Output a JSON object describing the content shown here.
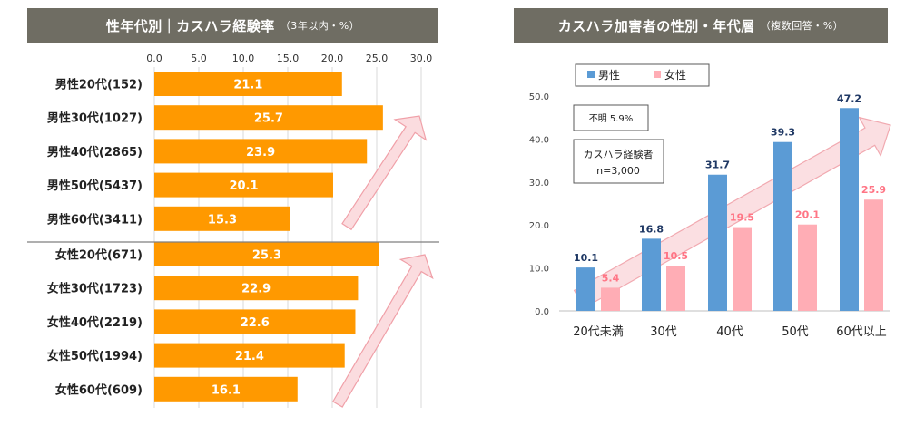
{
  "left": {
    "title": "性年代別｜カスハラ経験率",
    "subtitle": "（3年以内・%）"
  },
  "right": {
    "title": "カスハラ加害者の性別・年代層",
    "subtitle": "（複数回答・%）",
    "note_unknown": "不明 5.9%",
    "note_box_line1": "カスハラ経験者",
    "note_box_line2": "n=3,000"
  },
  "colors": {
    "title_bg": "#6f6d63",
    "orange_bar": "#ff9900",
    "male_bar": "#5b9bd5",
    "female_bar": "#ffadb5",
    "male_label": "#1f3864",
    "female_label": "#ff7585",
    "arrow_fill": "#fbdcdf",
    "arrow_stroke": "#f0a0a8"
  },
  "chart_data": [
    {
      "type": "bar",
      "orientation": "horizontal",
      "categories": [
        "男性20代(152)",
        "男性30代(1027)",
        "男性40代(2865)",
        "男性50代(5437)",
        "男性60代(3411)",
        "女性20代(671)",
        "女性30代(1723)",
        "女性40代(2219)",
        "女性50代(1994)",
        "女性60代(609)"
      ],
      "values": [
        21.1,
        25.7,
        23.9,
        20.1,
        15.3,
        25.3,
        22.9,
        22.6,
        21.4,
        16.1
      ],
      "value_labels": [
        "21.1",
        "25.7",
        "23.9",
        "20.1",
        "15.3",
        "25.3",
        "22.9",
        "22.6",
        "21.4",
        "16.1"
      ],
      "xlim": [
        0,
        30
      ],
      "xticks": [
        "0.0",
        "5.0",
        "10.0",
        "15.0",
        "20.0",
        "25.0",
        "30.0"
      ],
      "xtick_values": [
        0,
        5,
        10,
        15,
        20,
        25,
        30
      ],
      "grid": true,
      "annotations": [
        "upward arrow (男性)",
        "upward arrow (女性)"
      ]
    },
    {
      "type": "bar",
      "orientation": "vertical",
      "categories": [
        "20代未満",
        "30代",
        "40代",
        "50代",
        "60代以上"
      ],
      "series": [
        {
          "name": "男性",
          "values": [
            10.1,
            16.8,
            31.7,
            39.3,
            47.2
          ],
          "labels": [
            "10.1",
            "16.8",
            "31.7",
            "39.3",
            "47.2"
          ]
        },
        {
          "name": "女性",
          "values": [
            5.4,
            10.5,
            19.5,
            20.1,
            25.9
          ],
          "labels": [
            "5.4",
            "10.5",
            "19.5",
            "20.1",
            "25.9"
          ]
        }
      ],
      "ylim": [
        0,
        50
      ],
      "yticks": [
        "0.0",
        "10.0",
        "20.0",
        "30.0",
        "40.0",
        "50.0"
      ],
      "ytick_values": [
        0,
        10,
        20,
        30,
        40,
        50
      ],
      "grid": false,
      "legend_position": "top-left",
      "annotations": [
        "upward arrow"
      ]
    }
  ]
}
